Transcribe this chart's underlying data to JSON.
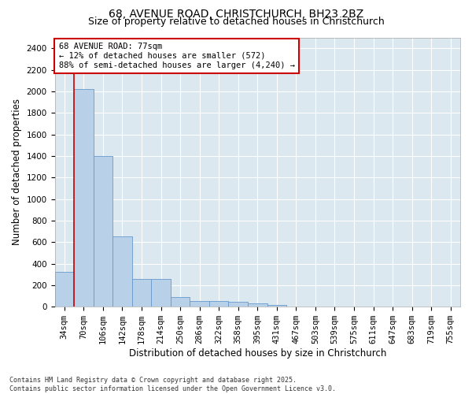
{
  "title_line1": "68, AVENUE ROAD, CHRISTCHURCH, BH23 2BZ",
  "title_line2": "Size of property relative to detached houses in Christchurch",
  "xlabel": "Distribution of detached houses by size in Christchurch",
  "ylabel": "Number of detached properties",
  "categories": [
    "34sqm",
    "70sqm",
    "106sqm",
    "142sqm",
    "178sqm",
    "214sqm",
    "250sqm",
    "286sqm",
    "322sqm",
    "358sqm",
    "395sqm",
    "431sqm",
    "467sqm",
    "503sqm",
    "539sqm",
    "575sqm",
    "611sqm",
    "647sqm",
    "683sqm",
    "719sqm",
    "755sqm"
  ],
  "values": [
    320,
    2020,
    1400,
    650,
    260,
    260,
    90,
    55,
    50,
    45,
    30,
    15,
    5,
    3,
    2,
    1,
    1,
    1,
    0,
    0,
    0
  ],
  "bar_color": "#b8d0e8",
  "bar_edge_color": "#6699cc",
  "vline_color": "#cc0000",
  "vline_x_index": 1,
  "annotation_text": "68 AVENUE ROAD: 77sqm\n← 12% of detached houses are smaller (572)\n88% of semi-detached houses are larger (4,240) →",
  "annotation_box_color": "#ffffff",
  "annotation_box_edge": "#cc0000",
  "ylim": [
    0,
    2500
  ],
  "yticks": [
    0,
    200,
    400,
    600,
    800,
    1000,
    1200,
    1400,
    1600,
    1800,
    2000,
    2200,
    2400
  ],
  "background_color": "#dce8f0",
  "footer_text": "Contains HM Land Registry data © Crown copyright and database right 2025.\nContains public sector information licensed under the Open Government Licence v3.0.",
  "title_fontsize": 10,
  "subtitle_fontsize": 9,
  "axis_label_fontsize": 8.5,
  "tick_fontsize": 7.5,
  "annotation_fontsize": 7.5
}
